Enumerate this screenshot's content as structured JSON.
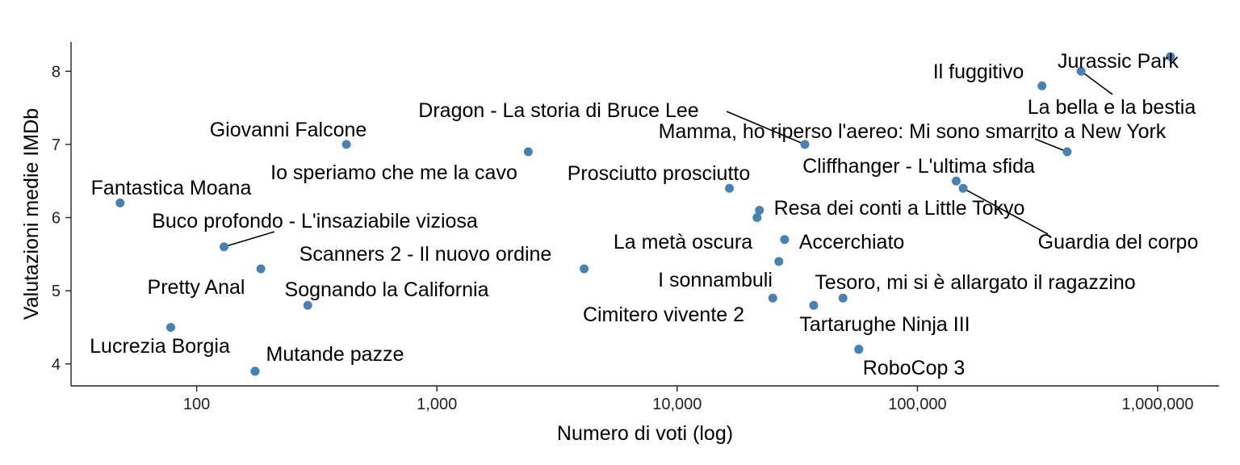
{
  "chart_data": {
    "type": "scatter",
    "title": "",
    "xlabel": "Numero di voti (log)",
    "ylabel": "Valutazioni medie IMDb",
    "x_scale": "log",
    "xlim": [
      30,
      1800000
    ],
    "ylim": [
      3.7,
      8.4
    ],
    "x_ticks": [
      100,
      1000,
      10000,
      100000,
      1000000
    ],
    "x_tick_labels": [
      "100",
      "1,000",
      "10,000",
      "100,000",
      "1,000,000"
    ],
    "y_ticks": [
      4,
      5,
      6,
      7,
      8
    ],
    "y_tick_labels": [
      "4",
      "5",
      "6",
      "7",
      "8"
    ],
    "grid": false,
    "legend": "none",
    "point_color": "#4682B4",
    "points": [
      {
        "label": "Jurassic Park",
        "x": 1130000,
        "y": 8.2
      },
      {
        "label": "La bella e la bestia",
        "x": 480000,
        "y": 8.0
      },
      {
        "label": "Il fuggitivo",
        "x": 330000,
        "y": 7.8
      },
      {
        "label": "Mamma, ho riperso l'aereo: Mi sono smarrito a New York",
        "x": 420000,
        "y": 6.9
      },
      {
        "label": "Dragon - La storia di Bruce Lee",
        "x": 34000,
        "y": 7.0
      },
      {
        "label": "Giovanni Falcone",
        "x": 420,
        "y": 7.0
      },
      {
        "label": "Io speriamo che me la cavo",
        "x": 2400,
        "y": 6.9
      },
      {
        "label": "Fantastica Moana",
        "x": 48,
        "y": 6.2
      },
      {
        "label": "Prosciutto prosciutto",
        "x": 16500,
        "y": 6.4
      },
      {
        "label": "Cliffhanger - L'ultima sfida",
        "x": 145000,
        "y": 6.5
      },
      {
        "label": "Guardia del corpo",
        "x": 155000,
        "y": 6.4
      },
      {
        "label": "Resa dei conti a Little Tokyo",
        "x": 22000,
        "y": 6.1
      },
      {
        "label": "",
        "x": 21500,
        "y": 6.0
      },
      {
        "label": "Buco profondo - L'insaziabile viziosa",
        "x": 130,
        "y": 5.6
      },
      {
        "label": "Accerchiato",
        "x": 28000,
        "y": 5.7
      },
      {
        "label": "La metà oscura",
        "x": 26500,
        "y": 5.4
      },
      {
        "label": "Scanners 2 - Il nuovo ordine",
        "x": 4100,
        "y": 5.3
      },
      {
        "label": "",
        "x": 185,
        "y": 5.3
      },
      {
        "label": "Pretty Anal",
        "x": 78,
        "y": 4.5
      },
      {
        "label": "Sognando la California",
        "x": 290,
        "y": 4.8
      },
      {
        "label": "I sonnambuli",
        "x": 25000,
        "y": 4.9
      },
      {
        "label": "Tesoro, mi si è allargato il ragazzino",
        "x": 49000,
        "y": 4.9
      },
      {
        "label": "Cimitero vivente 2",
        "x": 37000,
        "y": 4.8
      },
      {
        "label": "Tartarughe Ninja III",
        "x": 57000,
        "y": 4.2
      },
      {
        "label": "Lucrezia Borgia",
        "x": 175,
        "y": 3.9
      },
      {
        "label": "Mutande pazze",
        "x": 175,
        "y": 3.9
      },
      {
        "label": "RoboCop 3",
        "x": 57000,
        "y": 4.2
      }
    ]
  }
}
